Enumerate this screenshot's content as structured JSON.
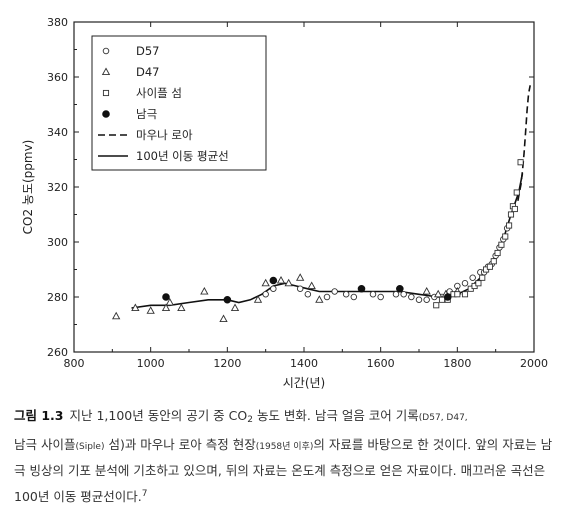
{
  "chart_data": {
    "type": "scatter",
    "xlabel": "시간(년)",
    "ylabel": "CO2 농도(ppmv)",
    "xlim": [
      800,
      2000
    ],
    "ylim": [
      260,
      380
    ],
    "xticks": [
      800,
      1000,
      1200,
      1400,
      1600,
      1800,
      2000
    ],
    "yticks": [
      260,
      280,
      300,
      320,
      340,
      360,
      380
    ],
    "legend_position": "top-left",
    "grid": false,
    "series": [
      {
        "name": "D57",
        "marker": "circle-open",
        "points": [
          [
            1300,
            281
          ],
          [
            1320,
            283
          ],
          [
            1390,
            283
          ],
          [
            1410,
            281
          ],
          [
            1460,
            280
          ],
          [
            1480,
            282
          ],
          [
            1510,
            281
          ],
          [
            1530,
            280
          ],
          [
            1580,
            281
          ],
          [
            1600,
            280
          ],
          [
            1640,
            281
          ],
          [
            1660,
            281
          ],
          [
            1680,
            280
          ],
          [
            1700,
            279
          ],
          [
            1720,
            279
          ],
          [
            1740,
            280
          ],
          [
            1760,
            280
          ],
          [
            1780,
            282
          ],
          [
            1800,
            284
          ],
          [
            1820,
            285
          ],
          [
            1840,
            287
          ],
          [
            1860,
            289
          ],
          [
            1870,
            289
          ],
          [
            1880,
            291
          ],
          [
            1890,
            292
          ],
          [
            1900,
            295
          ],
          [
            1910,
            298
          ],
          [
            1920,
            301
          ],
          [
            1930,
            305
          ]
        ]
      },
      {
        "name": "D47",
        "marker": "triangle-open",
        "points": [
          [
            910,
            273
          ],
          [
            960,
            276
          ],
          [
            1000,
            275
          ],
          [
            1040,
            276
          ],
          [
            1050,
            278
          ],
          [
            1080,
            276
          ],
          [
            1140,
            282
          ],
          [
            1190,
            272
          ],
          [
            1220,
            276
          ],
          [
            1280,
            279
          ],
          [
            1300,
            285
          ],
          [
            1340,
            286
          ],
          [
            1360,
            285
          ],
          [
            1390,
            287
          ],
          [
            1420,
            284
          ],
          [
            1440,
            279
          ],
          [
            1720,
            282
          ],
          [
            1750,
            281
          ],
          [
            1770,
            281
          ],
          [
            1800,
            282
          ]
        ]
      },
      {
        "name": "사이플 섬",
        "marker": "square-open",
        "points": [
          [
            1745,
            277
          ],
          [
            1760,
            279
          ],
          [
            1775,
            279
          ],
          [
            1790,
            281
          ],
          [
            1800,
            281
          ],
          [
            1820,
            281
          ],
          [
            1835,
            283
          ],
          [
            1845,
            284
          ],
          [
            1855,
            285
          ],
          [
            1865,
            287
          ],
          [
            1875,
            290
          ],
          [
            1885,
            291
          ],
          [
            1895,
            293
          ],
          [
            1905,
            296
          ],
          [
            1915,
            299
          ],
          [
            1925,
            302
          ],
          [
            1935,
            306
          ],
          [
            1940,
            310
          ],
          [
            1945,
            313
          ],
          [
            1950,
            312
          ],
          [
            1955,
            318
          ],
          [
            1965,
            329
          ]
        ]
      },
      {
        "name": "남극",
        "marker": "circle-filled",
        "points": [
          [
            1040,
            280
          ],
          [
            1200,
            279
          ],
          [
            1320,
            286
          ],
          [
            1550,
            283
          ],
          [
            1650,
            283
          ],
          [
            1775,
            280
          ]
        ]
      },
      {
        "name": "마우나 로아",
        "marker": "dashed-line",
        "points": [
          [
            1958,
            315
          ],
          [
            1962,
            318
          ],
          [
            1966,
            321
          ],
          [
            1970,
            326
          ],
          [
            1974,
            332
          ],
          [
            1978,
            340
          ],
          [
            1982,
            348
          ],
          [
            1986,
            354
          ],
          [
            1990,
            357
          ]
        ]
      },
      {
        "name": "100년 이동 평균선",
        "marker": "solid-line",
        "points": [
          [
            950,
            276
          ],
          [
            1000,
            277
          ],
          [
            1050,
            277
          ],
          [
            1100,
            278
          ],
          [
            1150,
            279
          ],
          [
            1200,
            279
          ],
          [
            1230,
            278
          ],
          [
            1260,
            279
          ],
          [
            1290,
            281
          ],
          [
            1320,
            284
          ],
          [
            1350,
            285
          ],
          [
            1380,
            284
          ],
          [
            1410,
            283
          ],
          [
            1440,
            282
          ],
          [
            1470,
            282
          ],
          [
            1500,
            282
          ],
          [
            1530,
            282
          ],
          [
            1560,
            282
          ],
          [
            1600,
            282
          ],
          [
            1650,
            282
          ],
          [
            1700,
            281
          ],
          [
            1750,
            280
          ],
          [
            1780,
            280
          ],
          [
            1800,
            281
          ],
          [
            1830,
            283
          ],
          [
            1860,
            287
          ],
          [
            1880,
            290
          ],
          [
            1900,
            295
          ],
          [
            1920,
            301
          ],
          [
            1940,
            310
          ],
          [
            1960,
            318
          ],
          [
            1970,
            325
          ]
        ]
      }
    ]
  },
  "caption": {
    "label": "그림 1.3",
    "part1": "지난 1,100년 동안의 공기 중 CO",
    "sub2": "2",
    "part2": " 농도 변화. 남극 얼음 코어 기록",
    "small1": "(D57, D47,",
    "line2a": "남극 사이플",
    "small2": "(Siple)",
    "line2b": " 섬)과 마우나 로아 측정 현장",
    "small3": "(1958년 이후)",
    "line2c": "의 자료를 바탕으로 한 것이다. 앞의 자료는 남극 빙상의 기포 분석에 기초하고 있으며, 뒤의 자료는 온도계 측정으로 얻은 자료이다. 매끄러운 곡선은 100년 이동 평균선이다.",
    "footnote": "7"
  }
}
